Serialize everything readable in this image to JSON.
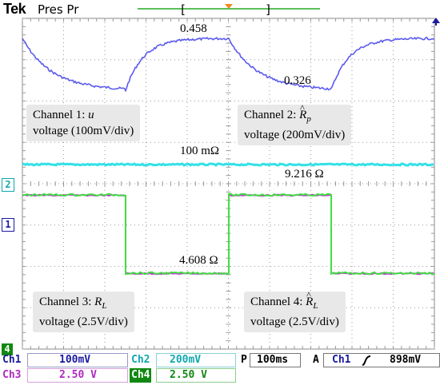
{
  "header": {
    "brand": "Tek",
    "acq_mode": "Pres Pr"
  },
  "annotations": {
    "peak_value": "0.458",
    "min_value": "0.326",
    "ch2_resistance": "100 mΩ",
    "ch2_offset_value": "9.216 Ω",
    "low_value": "4.608 Ω"
  },
  "channel_labels": {
    "ch1": {
      "prefix": "Channel 1: ",
      "symbol": "u",
      "line2": "voltage (100mV/div)"
    },
    "ch2": {
      "prefix": "Channel 2: ",
      "symbol": "R",
      "subscript": "p",
      "line2": "voltage (200mV/div)"
    },
    "ch3": {
      "prefix": "Channel 3: ",
      "symbol": "R",
      "subscript": "L",
      "line2": "voltage (2.5V/div)"
    },
    "ch4": {
      "prefix": "Channel 4: ",
      "symbol": "R",
      "subscript": "L",
      "line2": "voltage (2.5V/div)"
    }
  },
  "markers": {
    "ch1": "1",
    "ch2": "2",
    "ch4": "4"
  },
  "status": {
    "ch1_name": "Ch1",
    "ch1_scale": "100mV",
    "ch2_name": "Ch2",
    "ch2_scale": "200mV",
    "ch3_name": "Ch3",
    "ch3_scale": "2.50 V",
    "ch4_name": "Ch4",
    "ch4_scale": "2.50 V",
    "timebase_label": "P",
    "timebase": "100ms",
    "trigger_mode": "A",
    "trigger_source": "Ch1",
    "trigger_slope_icon": "rising-edge-icon",
    "trigger_level": "898mV"
  },
  "colors": {
    "ch1": "#5b5bef",
    "ch2": "#33e0e8",
    "ch3": "#c23ad6",
    "ch4": "#44dd44",
    "grid": "#9a9a9a",
    "trigger": "#f08a1c",
    "status_blue": "#1a1a9e",
    "status_cyan": "#10a8b0",
    "status_magenta": "#b02ac0",
    "status_green": "#118811"
  }
}
